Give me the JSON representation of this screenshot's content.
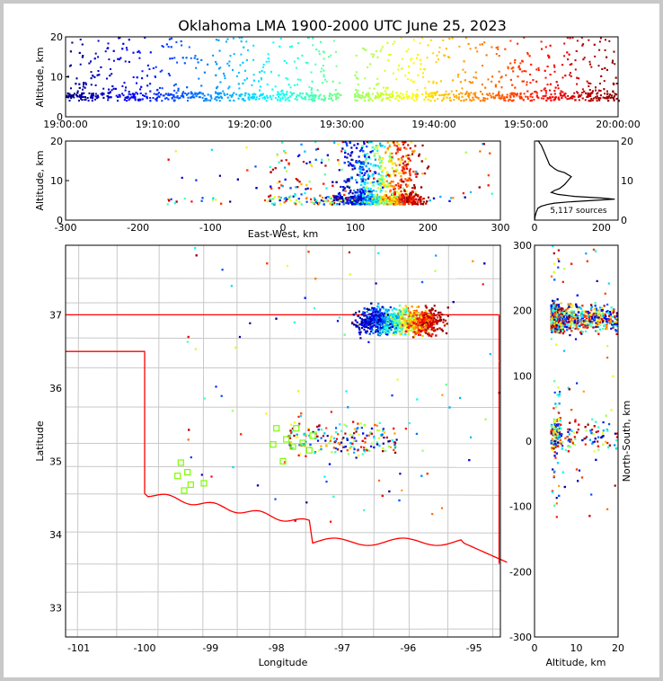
{
  "title": "Oklahoma LMA 1900-2000 UTC June 25, 2023",
  "colors": {
    "state_border": "#ff0000",
    "county": "#c8c8c8",
    "station": "#7cfc00"
  },
  "chart_data": [
    {
      "id": "time-height",
      "type": "scatter",
      "ylabel": "Altitude, km",
      "xlim": [
        "19:00:00",
        "20:00:00"
      ],
      "ylim": [
        0,
        20
      ],
      "x_ticks": [
        "19:00:00",
        "19:10:00",
        "19:20:00",
        "19:30:00",
        "19:40:00",
        "19:50:00",
        "20:00:00"
      ],
      "y_ticks": [
        0,
        10,
        20
      ],
      "color_encoding": "time (blue early to dark red late)"
    },
    {
      "id": "ew-altitude",
      "type": "scatter",
      "xlabel": "East-West, km",
      "ylabel": "Altitude, km",
      "xlim": [
        -300,
        300
      ],
      "ylim": [
        0,
        20
      ],
      "x_ticks": [
        -300,
        -200,
        -100,
        0,
        100,
        200,
        300
      ],
      "y_ticks": [
        0,
        10,
        20
      ]
    },
    {
      "id": "altitude-histogram",
      "type": "line",
      "annotation": "5,117 sources",
      "xlim": [
        0,
        250
      ],
      "ylim": [
        0,
        20
      ],
      "x_ticks": [
        0,
        200
      ],
      "y_ticks": [
        0,
        10,
        20
      ],
      "x": [
        0,
        2,
        5,
        10,
        20,
        40,
        60,
        100,
        180,
        240,
        200,
        120,
        70,
        50,
        60,
        75,
        90,
        100,
        110,
        90,
        70,
        60,
        45,
        40,
        35,
        30,
        25,
        20,
        15,
        12,
        10,
        8,
        5
      ],
      "y": [
        0,
        1,
        2,
        3,
        3.5,
        4,
        4.3,
        4.6,
        5,
        5.3,
        5.6,
        6,
        6.5,
        7,
        7.5,
        8,
        9,
        10,
        11,
        12,
        12.5,
        13,
        14,
        15,
        16,
        17,
        18,
        19,
        19.5,
        20,
        20,
        20,
        20
      ]
    },
    {
      "id": "plan-view-map",
      "type": "scatter",
      "xlabel": "Longitude",
      "ylabel": "Latitude",
      "xlim": [
        -101.2,
        -94.6
      ],
      "ylim": [
        32.6,
        37.95
      ],
      "x_ticks": [
        -101,
        -100,
        -99,
        -98,
        -97,
        -96,
        -95
      ],
      "y_ticks": [
        33,
        34,
        35,
        36,
        37
      ],
      "stations": [
        [
          -99.5,
          34.8
        ],
        [
          -99.45,
          34.98
        ],
        [
          -99.4,
          34.6
        ],
        [
          -99.35,
          34.85
        ],
        [
          -99.3,
          34.68
        ],
        [
          -99.1,
          34.7
        ],
        [
          -98.05,
          35.23
        ],
        [
          -98.0,
          35.45
        ],
        [
          -97.9,
          35.0
        ],
        [
          -97.85,
          35.3
        ],
        [
          -97.75,
          35.2
        ],
        [
          -97.7,
          35.45
        ],
        [
          -97.6,
          35.25
        ],
        [
          -97.5,
          35.15
        ],
        [
          -97.45,
          35.35
        ]
      ]
    },
    {
      "id": "ns-altitude",
      "type": "scatter",
      "xlabel": "Altitude, km",
      "ylabel": "North-South, km",
      "xlim": [
        0,
        20
      ],
      "ylim": [
        -300,
        300
      ],
      "x_ticks": [
        0,
        10,
        20
      ],
      "y_ticks": [
        -300,
        -200,
        -100,
        0,
        100,
        200,
        300
      ]
    }
  ]
}
